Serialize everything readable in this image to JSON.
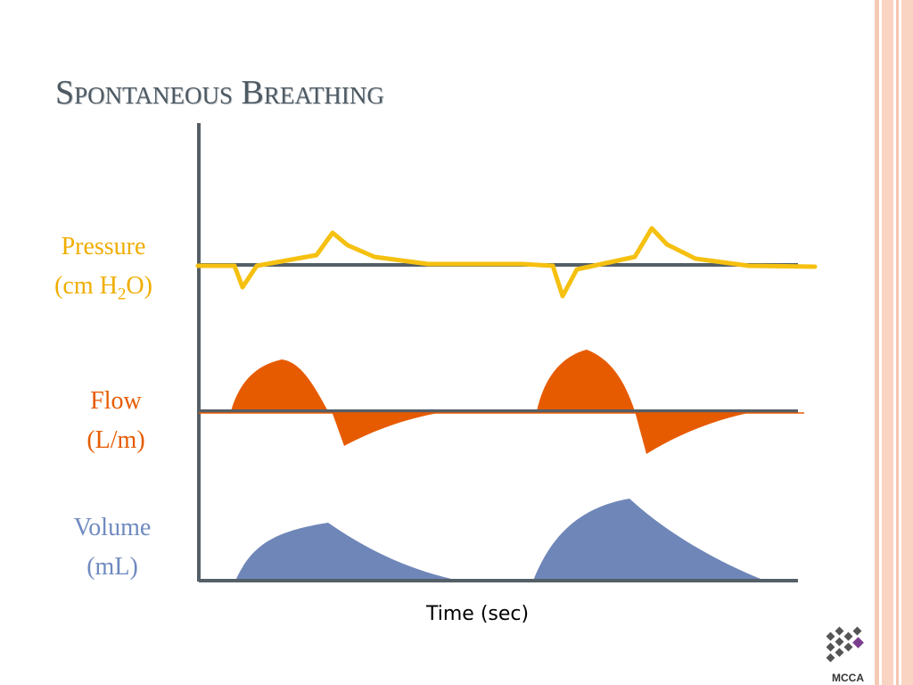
{
  "slide": {
    "title": "Spontaneous Breathing"
  },
  "labels": {
    "pressure_line1": "Pressure",
    "pressure_line2_prefix": "(cm H",
    "pressure_subscript": "2",
    "pressure_line2_suffix": "O)",
    "flow_line1": "Flow",
    "flow_line2": "(L/m)",
    "volume_line1": "Volume",
    "volume_line2": "(mL)",
    "x_axis": "Time (sec)"
  },
  "logo": {
    "text": "MCCA"
  },
  "colors": {
    "pressure": "#f5c010",
    "flow": "#e75b00",
    "volume": "#6f86b8",
    "axis": "#545f67",
    "border_strip": "#f7c7b4"
  }
}
